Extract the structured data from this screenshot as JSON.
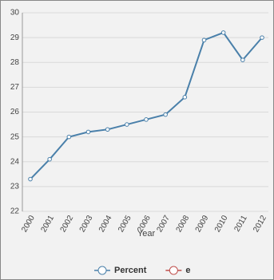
{
  "chart_data": {
    "type": "line",
    "x_label": "Year",
    "categories": [
      "2000",
      "2001",
      "2002",
      "2003",
      "2004",
      "2005",
      "2006",
      "2007",
      "2008",
      "2009",
      "2010",
      "2011",
      "2012"
    ],
    "series": [
      {
        "name": "Percent",
        "color": "#4a80aa",
        "values": [
          23.3,
          24.1,
          25.0,
          25.2,
          25.3,
          25.5,
          25.7,
          25.9,
          26.6,
          28.9,
          29.2,
          28.1,
          29.0
        ]
      },
      {
        "name": "e",
        "color": "#c0504d",
        "values": [
          null,
          null,
          null,
          null,
          null,
          null,
          null,
          null,
          null,
          null,
          null,
          null,
          null
        ]
      }
    ],
    "ylim": [
      22,
      30
    ],
    "yticks": [
      22,
      23,
      24,
      25,
      26,
      27,
      28,
      29,
      30
    ],
    "grid": true
  }
}
